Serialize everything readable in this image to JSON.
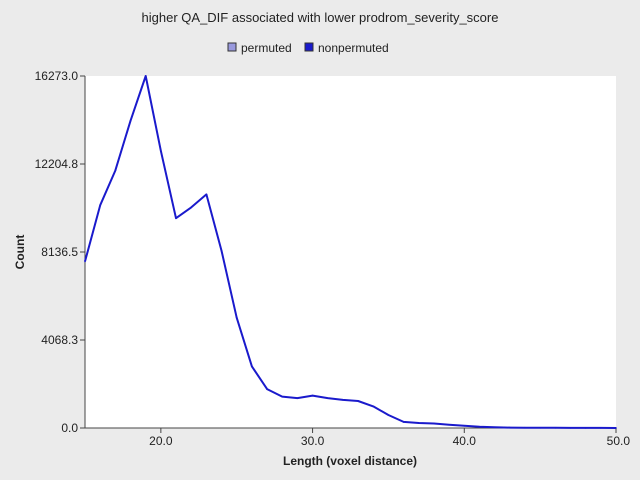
{
  "chart_data": {
    "type": "line",
    "title": "higher QA_DIF associated with lower prodrom_severity_score",
    "xlabel": "Length (voxel distance)",
    "ylabel": "Count",
    "xlim": [
      15,
      50
    ],
    "ylim": [
      0,
      16273.0
    ],
    "x_ticks": [
      20,
      30,
      40,
      50
    ],
    "x_tick_labels": [
      "20.0",
      "30.0",
      "40.0",
      "50.0"
    ],
    "y_ticks": [
      0,
      4068.3,
      8136.5,
      12204.8,
      16273.0
    ],
    "y_tick_labels": [
      "0.0",
      "4068.3",
      "8136.5",
      "12204.8",
      "16273.0"
    ],
    "grid": false,
    "legend_position": "top",
    "series": [
      {
        "name": "permuted",
        "color": "#9999dd",
        "x": [],
        "y": []
      },
      {
        "name": "nonpermuted",
        "color": "#1a1acc",
        "x": [
          15,
          16,
          17,
          18,
          19,
          20,
          21,
          22,
          23,
          24,
          25,
          26,
          27,
          28,
          29,
          30,
          31,
          32,
          33,
          34,
          35,
          36,
          37,
          38,
          39,
          40,
          41,
          42,
          43,
          44,
          45,
          46,
          47,
          48,
          49,
          50
        ],
        "y": [
          7700,
          10300,
          11900,
          14200,
          16273,
          12800,
          9700,
          10200,
          10800,
          8200,
          5100,
          2850,
          1800,
          1450,
          1380,
          1500,
          1380,
          1300,
          1250,
          1000,
          600,
          280,
          230,
          210,
          150,
          100,
          60,
          35,
          20,
          15,
          10,
          8,
          6,
          5,
          3,
          2
        ]
      }
    ]
  }
}
